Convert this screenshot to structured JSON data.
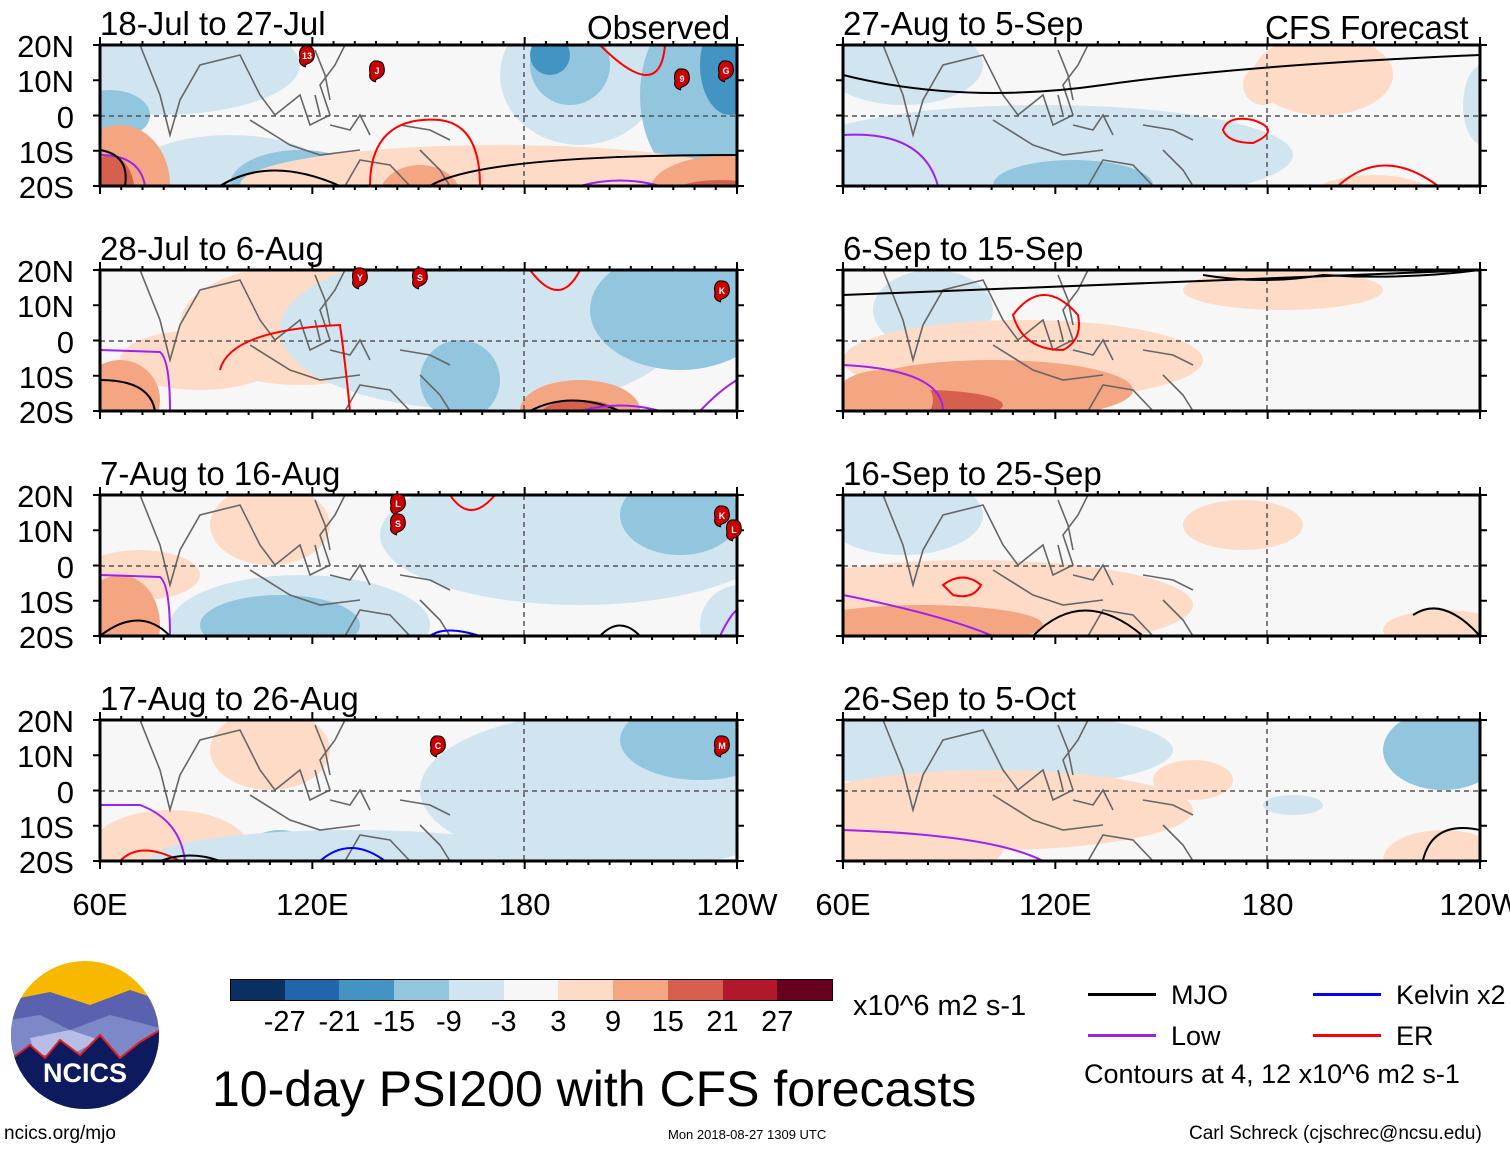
{
  "figure": {
    "title": "10-day PSI200 with CFS forecasts",
    "observed_label": "Observed",
    "forecast_label": "CFS Forecast",
    "timestamp": "Mon 2018-08-27 1309 UTC",
    "url": "ncics.org/mjo",
    "author": "Carl Schreck (cjschrec@ncsu.edu)",
    "logo_text": "NCICS"
  },
  "axes": {
    "lat_labels": [
      "20N",
      "10N",
      "0",
      "10S",
      "20S"
    ],
    "lon_labels": [
      "60E",
      "120E",
      "180",
      "120W"
    ]
  },
  "panels_observed": [
    {
      "title": "18-Jul to 27-Jul",
      "storms": [
        "13",
        "J",
        "9",
        "G"
      ]
    },
    {
      "title": "28-Jul to 6-Aug",
      "storms": [
        "Y",
        "S",
        "K"
      ]
    },
    {
      "title": "7-Aug to 16-Aug",
      "storms": [
        "L",
        "S",
        "K",
        "L"
      ]
    },
    {
      "title": "17-Aug to 26-Aug",
      "storms": [
        "C",
        "M"
      ]
    }
  ],
  "panels_forecast": [
    {
      "title": "27-Aug to 5-Sep"
    },
    {
      "title": "6-Sep to 15-Sep"
    },
    {
      "title": "16-Sep to 25-Sep"
    },
    {
      "title": "26-Sep to 5-Oct"
    }
  ],
  "colorbar": {
    "ticks": [
      "-27",
      "-21",
      "-15",
      "-9",
      "-3",
      "3",
      "9",
      "15",
      "21",
      "27"
    ],
    "units": "x10^6 m2 s-1",
    "colors": [
      "#0a3062",
      "#2166ac",
      "#4393c3",
      "#92c5de",
      "#d1e5f0",
      "#f7f7f7",
      "#fddbc7",
      "#f4a582",
      "#d6604d",
      "#b2182b",
      "#67001f"
    ]
  },
  "legend": {
    "items": [
      {
        "label": "MJO",
        "color": "#000000"
      },
      {
        "label": "Kelvin x2",
        "color": "#0000ff"
      },
      {
        "label": "Low",
        "color": "#a020f0"
      },
      {
        "label": "ER",
        "color": "#ff0000"
      }
    ],
    "note": "Contours at 4, 12 x10^6 m2 s-1"
  }
}
